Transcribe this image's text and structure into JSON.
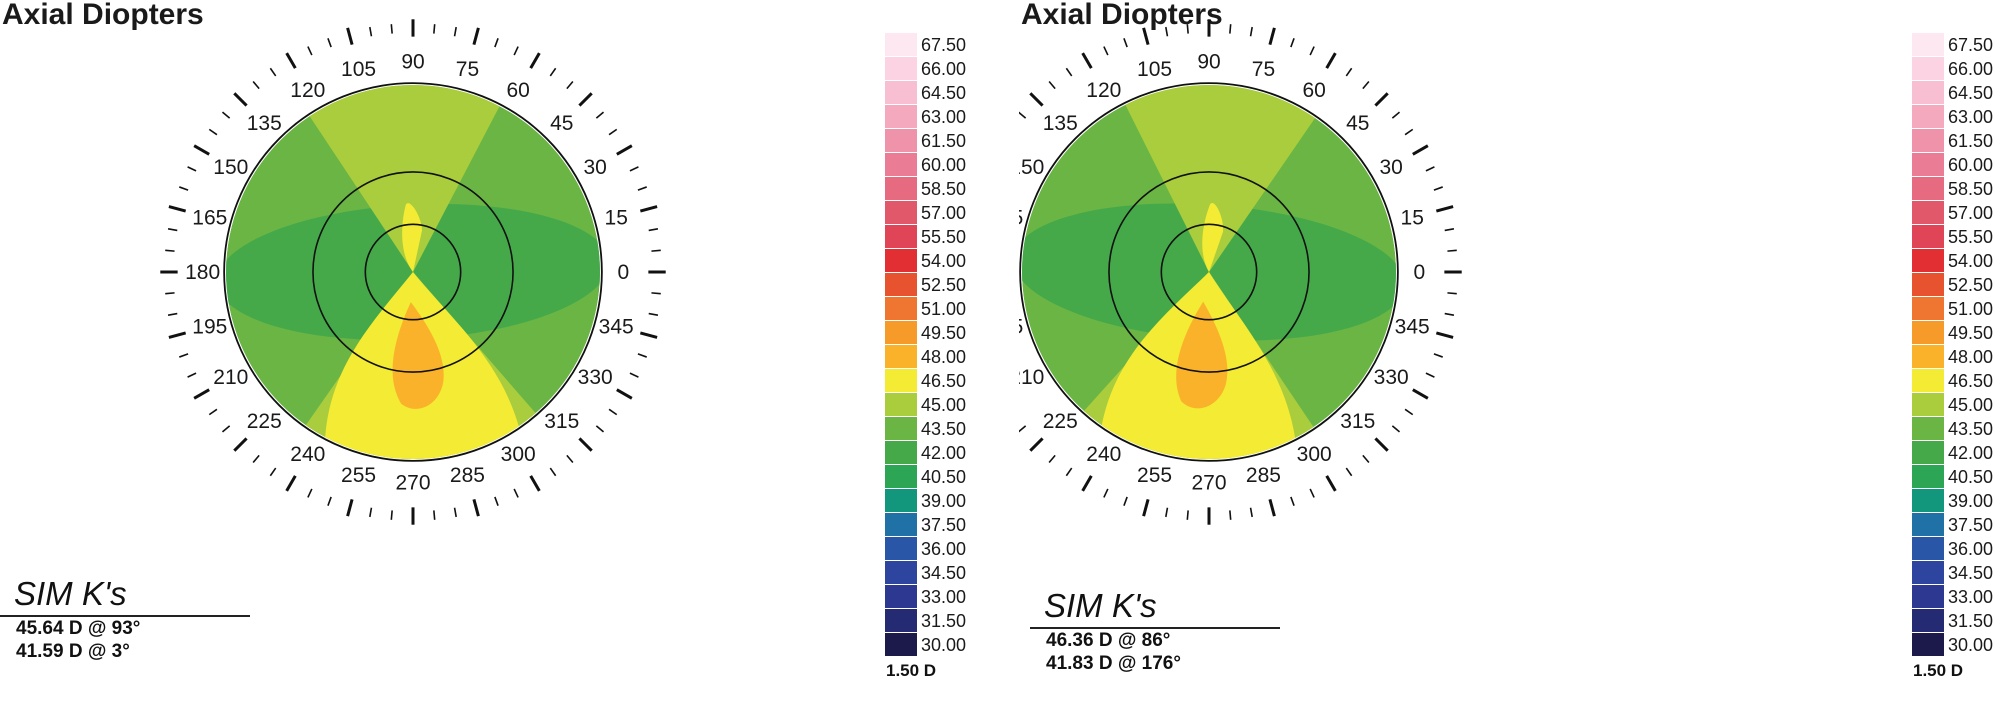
{
  "colors": {
    "background": "#ffffff",
    "rings": "#111111",
    "tick": "#111111"
  },
  "scale_step": "1.50 D",
  "scale": [
    {
      "label": "67.50",
      "color": "#fde7f1"
    },
    {
      "label": "66.00",
      "color": "#fbd3e3"
    },
    {
      "label": "64.50",
      "color": "#f8bfd2"
    },
    {
      "label": "63.00",
      "color": "#f4a9bf"
    },
    {
      "label": "61.50",
      "color": "#ef93aa"
    },
    {
      "label": "60.00",
      "color": "#ea7d95"
    },
    {
      "label": "58.50",
      "color": "#e66a80"
    },
    {
      "label": "57.00",
      "color": "#e2586b"
    },
    {
      "label": "55.50",
      "color": "#df4556"
    },
    {
      "label": "54.00",
      "color": "#e22f34"
    },
    {
      "label": "52.50",
      "color": "#e7522f"
    },
    {
      "label": "51.00",
      "color": "#ef7630"
    },
    {
      "label": "49.50",
      "color": "#f69a2a"
    },
    {
      "label": "48.00",
      "color": "#fab22a"
    },
    {
      "label": "46.50",
      "color": "#f3eb34"
    },
    {
      "label": "45.00",
      "color": "#a9cd3c"
    },
    {
      "label": "43.50",
      "color": "#6ab544"
    },
    {
      "label": "42.00",
      "color": "#45a94a"
    },
    {
      "label": "40.50",
      "color": "#2ca554"
    },
    {
      "label": "39.00",
      "color": "#12977c"
    },
    {
      "label": "37.50",
      "color": "#1f71a6"
    },
    {
      "label": "36.00",
      "color": "#2a56a7"
    },
    {
      "label": "34.50",
      "color": "#2e45a0"
    },
    {
      "label": "33.00",
      "color": "#2d3891"
    },
    {
      "label": "31.50",
      "color": "#252b72"
    },
    {
      "label": "30.00",
      "color": "#1c1a4a"
    }
  ],
  "axis_labels": [
    "0",
    "15",
    "30",
    "45",
    "60",
    "75",
    "90",
    "105",
    "120",
    "135",
    "150",
    "165",
    "180",
    "195",
    "210",
    "225",
    "240",
    "255",
    "270",
    "285",
    "300",
    "315",
    "330",
    "345"
  ],
  "panels": [
    {
      "title": "Axial Diopters",
      "simk_title": "SIM K's",
      "simk_lines": [
        "45.64 D @ 93°",
        "41.59 D @ 3°"
      ],
      "steep_axis_deg": 93,
      "map_colors": {
        "green_dark": "#45a94a",
        "green_mid": "#6ab544",
        "green_light": "#a9cd3c",
        "yellow": "#f3eb34",
        "orange": "#fab22a"
      }
    },
    {
      "title": "Axial Diopters",
      "simk_title": "SIM K's",
      "simk_lines": [
        "46.36 D @ 86°",
        "41.83 D @ 176°"
      ],
      "steep_axis_deg": 86,
      "map_colors": {
        "green_dark": "#45a94a",
        "green_mid": "#6ab544",
        "green_light": "#a9cd3c",
        "yellow": "#f3eb34",
        "orange": "#fab22a"
      }
    }
  ]
}
